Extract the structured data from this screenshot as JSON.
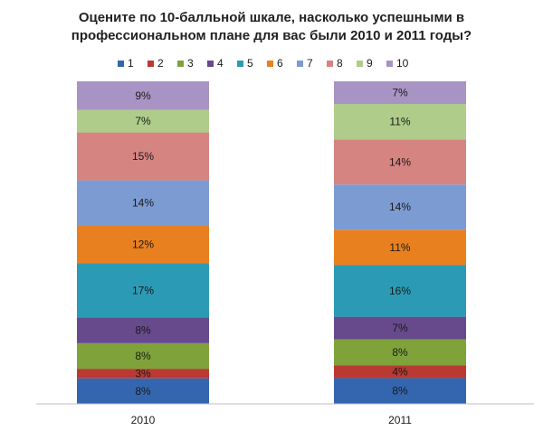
{
  "chart_data": {
    "type": "bar",
    "stacked": true,
    "title_lines": [
      "Оцените по 10-балльной шкале, насколько успешными в",
      "профессиональном плане для вас были 2010 и 2011 годы?"
    ],
    "categories": [
      "2010",
      "2011"
    ],
    "series": [
      {
        "name": "1",
        "color": "#3466B0",
        "values": [
          8,
          8
        ],
        "labels": [
          "8%",
          "8%"
        ]
      },
      {
        "name": "2",
        "color": "#B93A33",
        "values": [
          3,
          4
        ],
        "labels": [
          "3%",
          "4%"
        ]
      },
      {
        "name": "3",
        "color": "#7FA33A",
        "values": [
          8,
          8
        ],
        "labels": [
          "8%",
          "8%"
        ]
      },
      {
        "name": "4",
        "color": "#664A8C",
        "values": [
          8,
          7
        ],
        "labels": [
          "8%",
          "7%"
        ]
      },
      {
        "name": "5",
        "color": "#2B9BB5",
        "values": [
          17,
          16
        ],
        "labels": [
          "17%",
          "16%"
        ]
      },
      {
        "name": "6",
        "color": "#E8801F",
        "values": [
          12,
          11
        ],
        "labels": [
          "12%",
          "11%"
        ]
      },
      {
        "name": "7",
        "color": "#7C9BD3",
        "values": [
          14,
          14
        ],
        "labels": [
          "14%",
          "14%"
        ]
      },
      {
        "name": "8",
        "color": "#D68482",
        "values": [
          15,
          14
        ],
        "labels": [
          "15%",
          "14%"
        ]
      },
      {
        "name": "9",
        "color": "#AFCC8A",
        "values": [
          7,
          11
        ],
        "labels": [
          "7%",
          "11%"
        ]
      },
      {
        "name": "10",
        "color": "#A894C4",
        "values": [
          9,
          7
        ],
        "labels": [
          "9%",
          "7%"
        ]
      }
    ],
    "legend_position": "top",
    "grid": false
  }
}
